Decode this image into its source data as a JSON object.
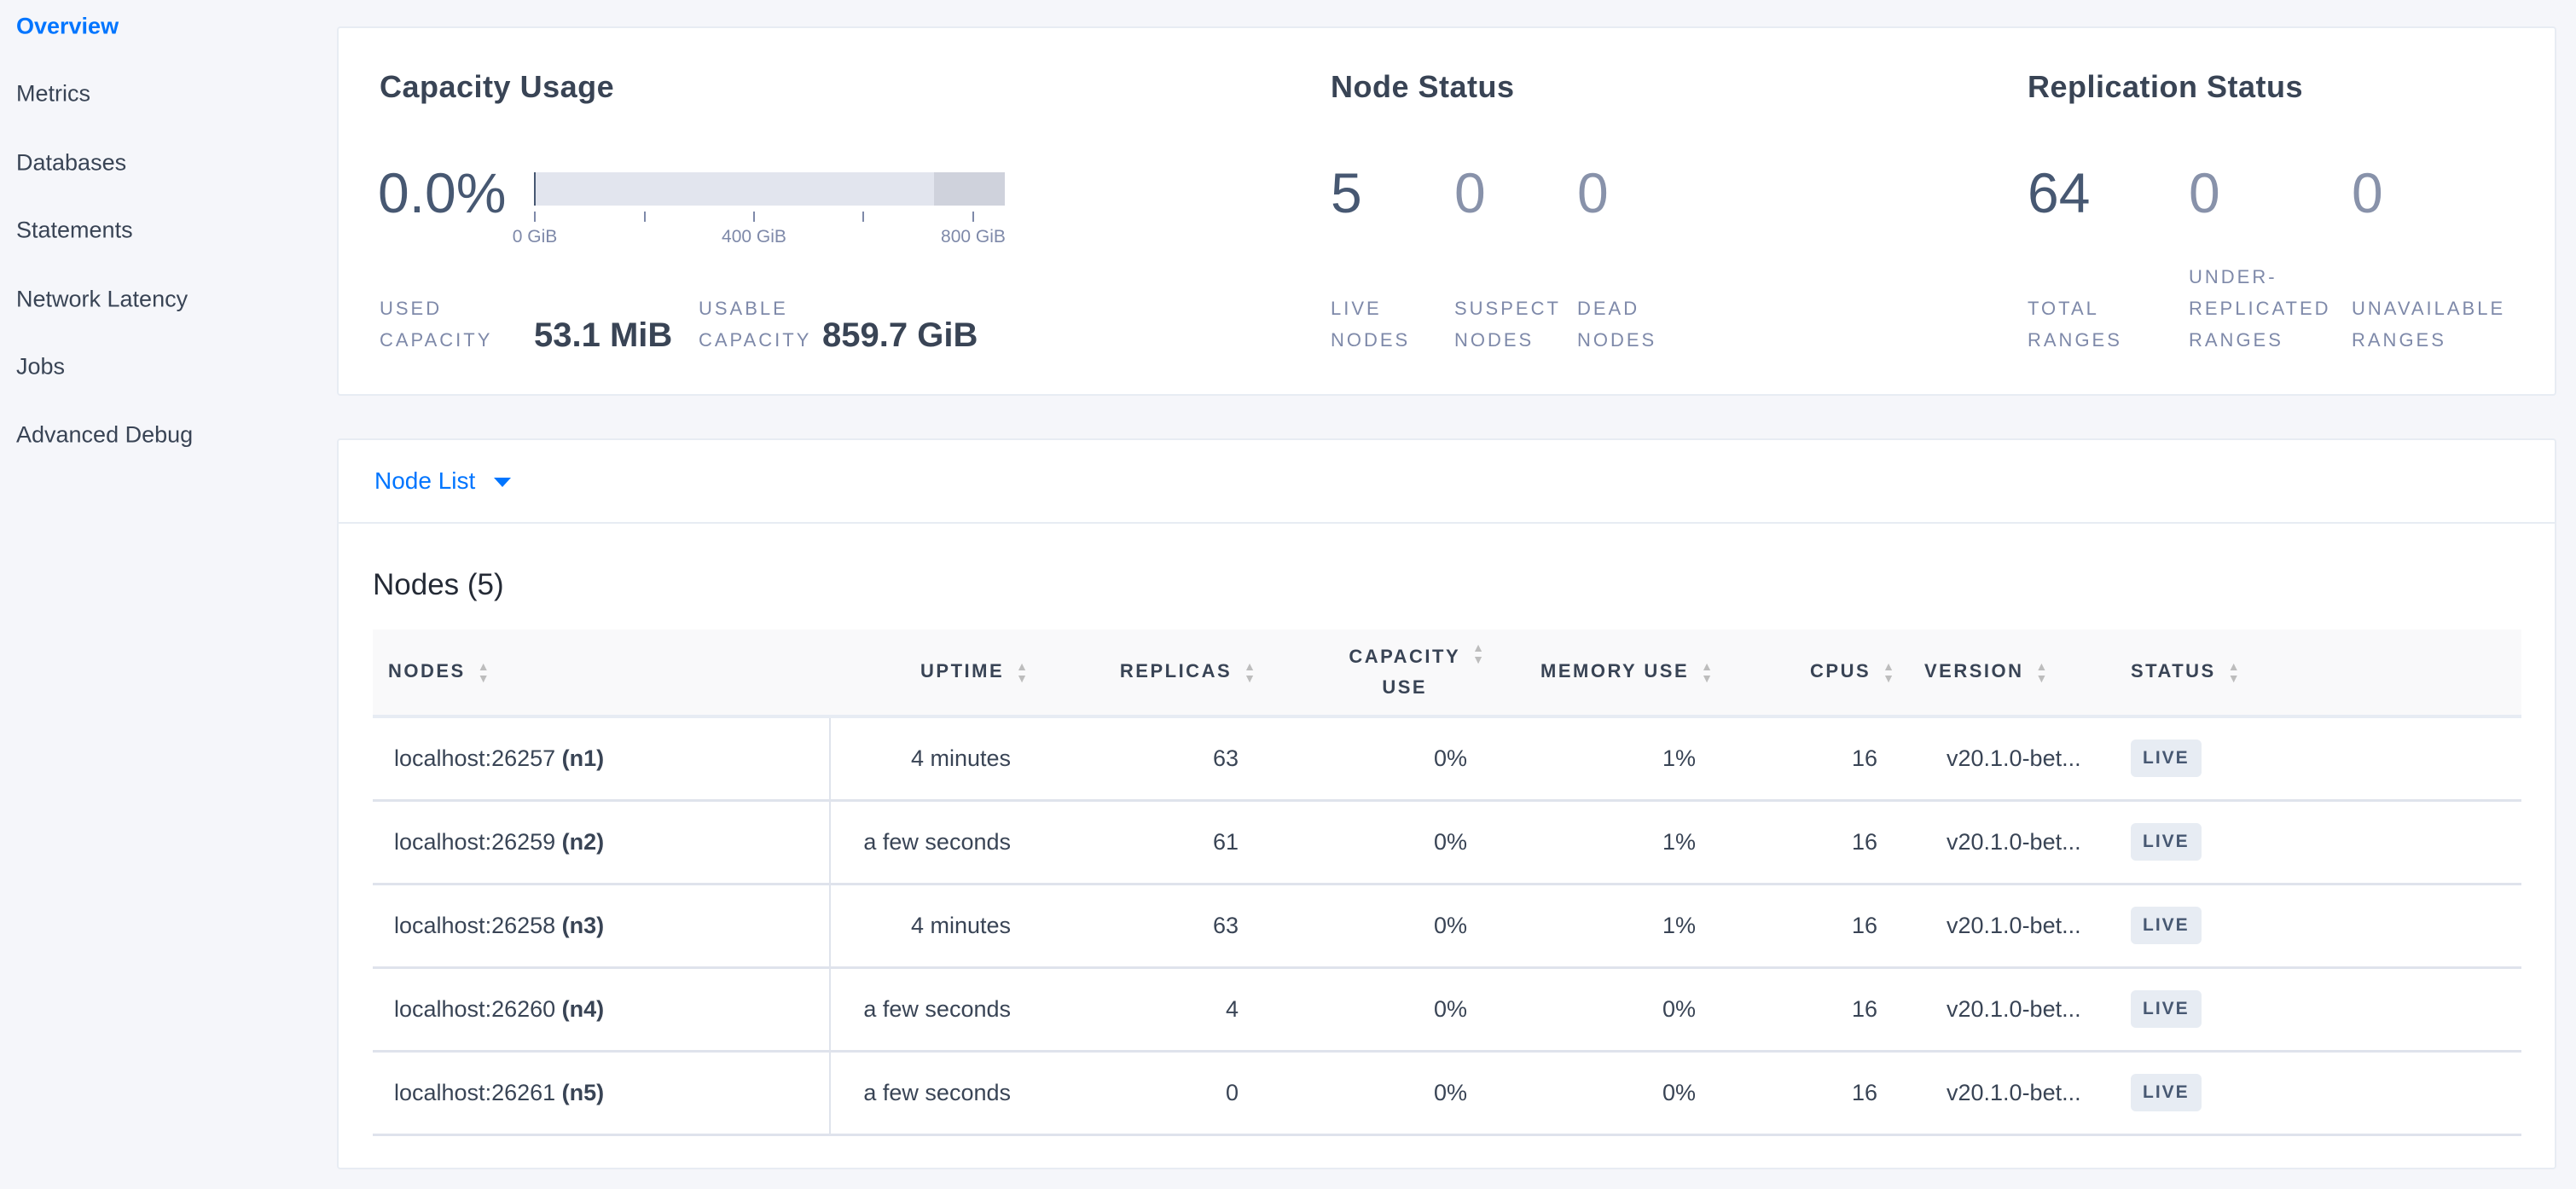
{
  "sidebar": {
    "items": [
      {
        "label": "Overview",
        "active": true
      },
      {
        "label": "Metrics"
      },
      {
        "label": "Databases"
      },
      {
        "label": "Statements"
      },
      {
        "label": "Network Latency"
      },
      {
        "label": "Jobs"
      },
      {
        "label": "Advanced Debug"
      }
    ]
  },
  "capacity": {
    "title": "Capacity Usage",
    "percent": "0.0%",
    "usage_fraction": 0.0,
    "axis_ticks": [
      "0 GiB",
      "400 GiB",
      "800 GiB"
    ],
    "used_label_1": "USED",
    "used_label_2": "CAPACITY",
    "used_value": "53.1 MiB",
    "usable_label_1": "USABLE",
    "usable_label_2": "CAPACITY",
    "usable_value": "859.7 GiB"
  },
  "node_status": {
    "title": "Node Status",
    "live": "5",
    "suspect": "0",
    "dead": "0",
    "live_l1": "LIVE",
    "live_l2": "NODES",
    "suspect_l1": "SUSPECT",
    "suspect_l2": "NODES",
    "dead_l1": "DEAD",
    "dead_l2": "NODES"
  },
  "replication": {
    "title": "Replication Status",
    "total": "64",
    "under": "0",
    "unavailable": "0",
    "total_l1": "TOTAL",
    "total_l2": "RANGES",
    "under_l0": "UNDER-",
    "under_l1": "REPLICATED",
    "under_l2": "RANGES",
    "unavail_l1": "UNAVAILABLE",
    "unavail_l2": "RANGES"
  },
  "node_list": {
    "dropdown": "Node List",
    "heading": "Nodes (5)",
    "columns": [
      "NODES",
      "UPTIME",
      "REPLICAS",
      "CAPACITY",
      "USE",
      "MEMORY USE",
      "CPUS",
      "VERSION",
      "STATUS"
    ],
    "rows": [
      {
        "addr": "localhost:26257",
        "id": "(n1)",
        "uptime": "4 minutes",
        "replicas": "63",
        "capacity": "0%",
        "memory": "1%",
        "cpus": "16",
        "version": "v20.1.0-bet...",
        "status": "LIVE"
      },
      {
        "addr": "localhost:26259",
        "id": "(n2)",
        "uptime": "a few seconds",
        "replicas": "61",
        "capacity": "0%",
        "memory": "1%",
        "cpus": "16",
        "version": "v20.1.0-bet...",
        "status": "LIVE"
      },
      {
        "addr": "localhost:26258",
        "id": "(n3)",
        "uptime": "4 minutes",
        "replicas": "63",
        "capacity": "0%",
        "memory": "1%",
        "cpus": "16",
        "version": "v20.1.0-bet...",
        "status": "LIVE"
      },
      {
        "addr": "localhost:26260",
        "id": "(n4)",
        "uptime": "a few seconds",
        "replicas": "4",
        "capacity": "0%",
        "memory": "0%",
        "cpus": "16",
        "version": "v20.1.0-bet...",
        "status": "LIVE"
      },
      {
        "addr": "localhost:26261",
        "id": "(n5)",
        "uptime": "a few seconds",
        "replicas": "0",
        "capacity": "0%",
        "memory": "0%",
        "cpus": "16",
        "version": "v20.1.0-bet...",
        "status": "LIVE"
      }
    ]
  }
}
